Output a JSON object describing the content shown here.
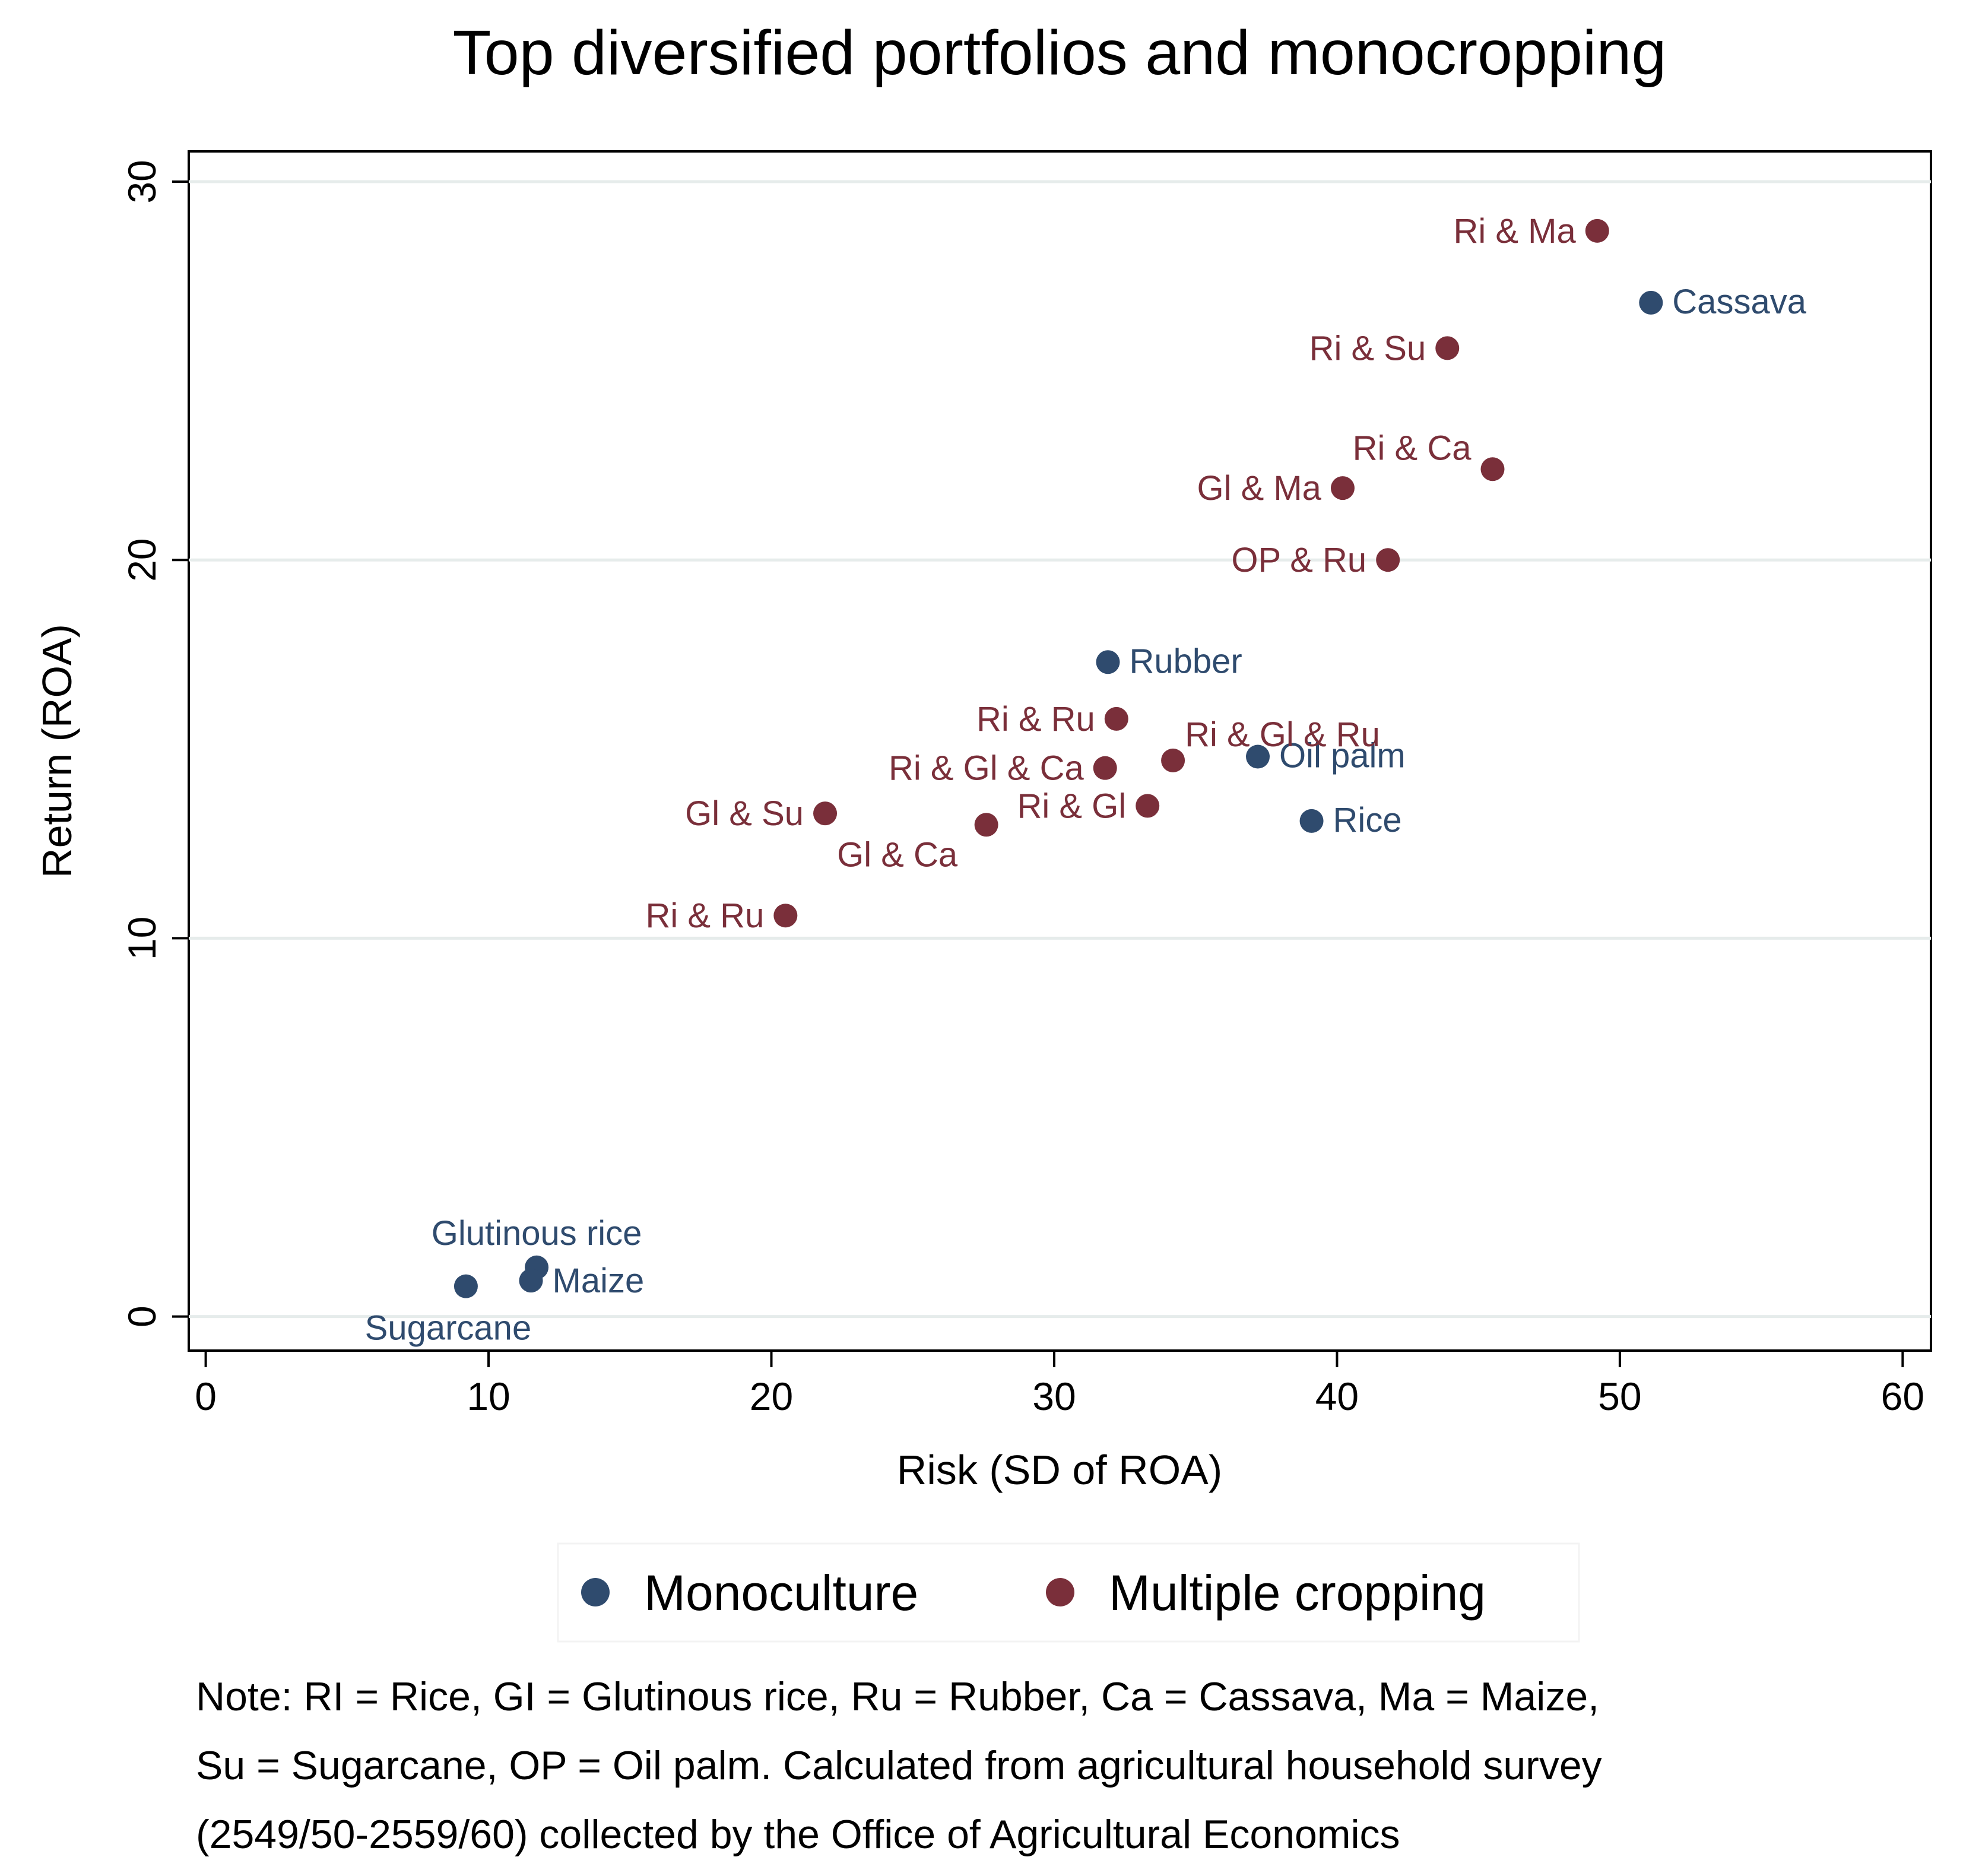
{
  "colors": {
    "monoculture": "#2f4b6e",
    "multiple": "#7a2f3a",
    "grid": "#e6eceb",
    "axis": "#000000"
  },
  "chart_data": {
    "type": "scatter",
    "title": "Top diversified portfolios and monocropping",
    "xlabel": "Risk (SD of ROA)",
    "ylabel": "Return (ROA)",
    "xlim": [
      -0.6,
      61
    ],
    "ylim": [
      -0.9,
      30.8
    ],
    "xticks": [
      "0",
      "10",
      "20",
      "30",
      "40",
      "50",
      "60"
    ],
    "yticks": [
      "0",
      "10",
      "20",
      "30"
    ],
    "grid": "horizontal",
    "legend": {
      "placement": "bottom-center",
      "items": [
        "Monoculture",
        "Multiple cropping"
      ]
    },
    "series": [
      {
        "name": "Monoculture",
        "points": [
          {
            "label": "Cassava",
            "x": 51.1,
            "y": 26.8
          },
          {
            "label": "Rubber",
            "x": 31.9,
            "y": 17.3
          },
          {
            "label": "Oil palm",
            "x": 37.2,
            "y": 14.8
          },
          {
            "label": "Rice",
            "x": 39.1,
            "y": 13.1
          },
          {
            "label": "Glutinous rice",
            "x": 11.7,
            "y": 1.3
          },
          {
            "label": "Maize",
            "x": 11.5,
            "y": 0.95
          },
          {
            "label": "Sugarcane",
            "x": 9.2,
            "y": 0.8
          }
        ]
      },
      {
        "name": "Multiple cropping",
        "points": [
          {
            "label": "Ri & Ma",
            "x": 49.2,
            "y": 28.7
          },
          {
            "label": "Ri & Su",
            "x": 43.9,
            "y": 25.6
          },
          {
            "label": "Ri & Ca",
            "x": 45.5,
            "y": 22.4
          },
          {
            "label": "Gl & Ma",
            "x": 40.2,
            "y": 21.9
          },
          {
            "label": "OP & Ru",
            "x": 41.8,
            "y": 20.0
          },
          {
            "label": "Ri & Ru",
            "x": 32.2,
            "y": 15.8
          },
          {
            "label": "Ri & Gl & Ru",
            "x": 34.2,
            "y": 14.7
          },
          {
            "label": "Ri & Gl & Ca",
            "x": 31.8,
            "y": 14.5
          },
          {
            "label": "Ri & Gl",
            "x": 33.3,
            "y": 13.5
          },
          {
            "label": "Gl & Su",
            "x": 21.9,
            "y": 13.3
          },
          {
            "label": "Gl & Ca",
            "x": 27.6,
            "y": 13.0
          },
          {
            "label": "Ri & Ru",
            "x": 20.5,
            "y": 10.6
          }
        ]
      }
    ]
  },
  "note": {
    "lines": [
      "Note: RI = Rice, GI = Glutinous rice, Ru = Rubber, Ca = Cassava, Ma = Maize,",
      "Su = Sugarcane, OP = Oil palm. Calculated from agricultural household survey",
      "(2549/50-2559/60) collected by the Office of Agricultural Economics"
    ]
  }
}
